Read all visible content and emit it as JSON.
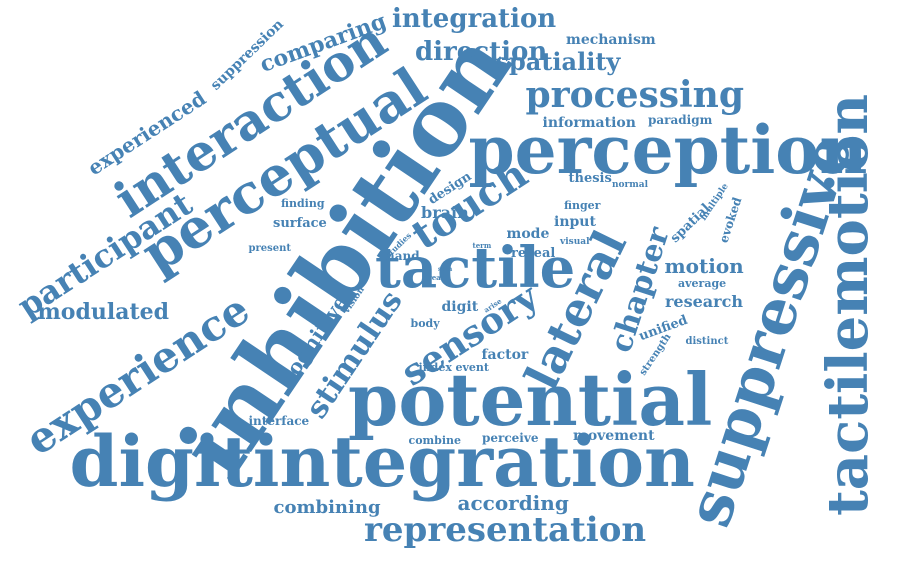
{
  "color": "#4682b4",
  "words": [
    {
      "id": "inhibition",
      "text": "inhibition"
    },
    {
      "id": "perception",
      "text": "perception"
    },
    {
      "id": "potential",
      "text": "potential"
    },
    {
      "id": "digitintegration",
      "text": "digitintegration"
    },
    {
      "id": "suppressive",
      "text": "suppressive"
    },
    {
      "id": "tactilemotion",
      "text": "tactilemotion"
    },
    {
      "id": "tactile",
      "text": "tactile"
    },
    {
      "id": "perceptual",
      "text": "perceptual"
    },
    {
      "id": "interaction",
      "text": "interaction"
    },
    {
      "id": "experience",
      "text": "experience"
    },
    {
      "id": "lateral",
      "text": "lateral"
    },
    {
      "id": "touch",
      "text": "touch"
    },
    {
      "id": "processing",
      "text": "processing"
    },
    {
      "id": "participant",
      "text": "participant"
    },
    {
      "id": "sensory",
      "text": "sensory"
    },
    {
      "id": "representation",
      "text": "representation"
    },
    {
      "id": "stimulus",
      "text": "stimulus"
    },
    {
      "id": "chapter",
      "text": "chapter"
    },
    {
      "id": "integration",
      "text": "integration"
    },
    {
      "id": "direction",
      "text": "direction"
    },
    {
      "id": "comparing",
      "text": "comparing"
    },
    {
      "id": "spatiality",
      "text": "spatiality"
    },
    {
      "id": "experienced",
      "text": "experienced"
    },
    {
      "id": "suppression",
      "text": "suppression"
    },
    {
      "id": "mechanism",
      "text": "mechanism"
    },
    {
      "id": "modulated",
      "text": "modulated"
    },
    {
      "id": "cognitive",
      "text": "cognitive"
    },
    {
      "id": "combining",
      "text": "combining"
    },
    {
      "id": "according",
      "text": "according"
    },
    {
      "id": "motion",
      "text": "motion"
    },
    {
      "id": "research",
      "text": "research"
    },
    {
      "id": "information",
      "text": "information"
    },
    {
      "id": "paradigm",
      "text": "paradigm"
    },
    {
      "id": "brain",
      "text": "brain"
    },
    {
      "id": "design",
      "text": "design"
    },
    {
      "id": "surface",
      "text": "surface"
    },
    {
      "id": "finding",
      "text": "finding"
    },
    {
      "id": "present",
      "text": "present"
    },
    {
      "id": "thesis",
      "text": "thesis"
    },
    {
      "id": "finger",
      "text": "finger"
    },
    {
      "id": "normal",
      "text": "normal"
    },
    {
      "id": "input",
      "text": "input"
    },
    {
      "id": "mode",
      "text": "mode"
    },
    {
      "id": "reveal",
      "text": "reveal"
    },
    {
      "id": "visual",
      "text": "visual"
    },
    {
      "id": "spatial",
      "text": "spatial"
    },
    {
      "id": "evoked",
      "text": "evoked"
    },
    {
      "id": "multiple",
      "text": "multiple"
    },
    {
      "id": "average",
      "text": "average"
    },
    {
      "id": "unified",
      "text": "unified"
    },
    {
      "id": "distinct",
      "text": "distinct"
    },
    {
      "id": "strength",
      "text": "strength"
    },
    {
      "id": "hand",
      "text": "hand"
    },
    {
      "id": "studies",
      "text": "studies"
    },
    {
      "id": "term",
      "text": "term"
    },
    {
      "id": "area",
      "text": "area"
    },
    {
      "id": "skin",
      "text": "skin"
    },
    {
      "id": "arise",
      "text": "arise"
    },
    {
      "id": "digit",
      "text": "digit"
    },
    {
      "id": "vision",
      "text": "vision"
    },
    {
      "id": "body",
      "text": "body"
    },
    {
      "id": "factor",
      "text": "factor"
    },
    {
      "id": "index",
      "text": "index"
    },
    {
      "id": "event",
      "text": "event"
    },
    {
      "id": "interface",
      "text": "interface"
    },
    {
      "id": "combine",
      "text": "combine"
    },
    {
      "id": "perceive",
      "text": "perceive"
    },
    {
      "id": "movement",
      "text": "movement"
    }
  ]
}
